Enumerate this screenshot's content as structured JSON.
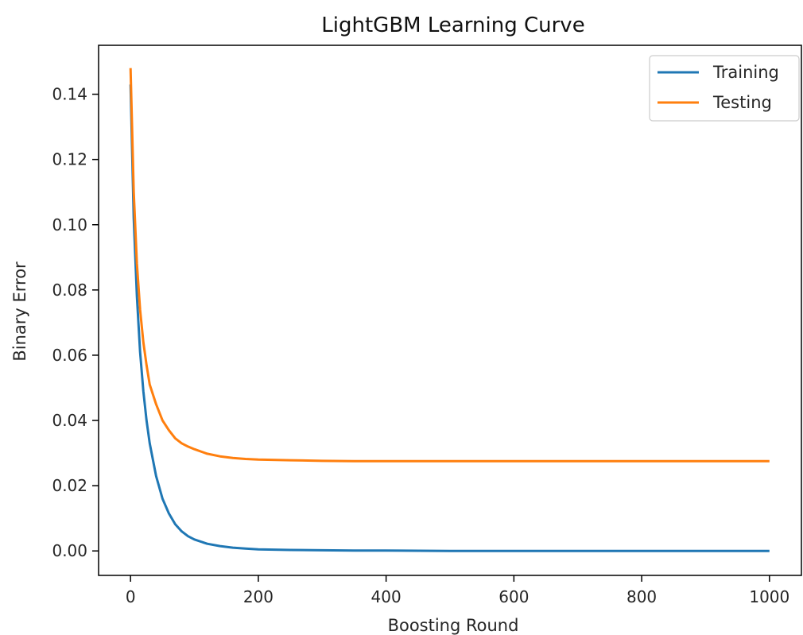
{
  "chart_data": {
    "type": "line",
    "title": "LightGBM Learning Curve",
    "xlabel": "Boosting Round",
    "ylabel": "Binary Error",
    "xlim": [
      -50,
      1050
    ],
    "ylim": [
      -0.0075,
      0.155
    ],
    "xticks": [
      0,
      200,
      400,
      600,
      800,
      1000
    ],
    "yticks": [
      0.0,
      0.02,
      0.04,
      0.06,
      0.08,
      0.1,
      0.12,
      0.14
    ],
    "xtick_labels": [
      "0",
      "200",
      "400",
      "600",
      "800",
      "1000"
    ],
    "ytick_labels": [
      "0.00",
      "0.02",
      "0.04",
      "0.06",
      "0.08",
      "0.10",
      "0.12",
      "0.14"
    ],
    "grid": false,
    "legend_position": "top-right",
    "series": [
      {
        "name": "Training",
        "color": "#1f77b4",
        "x": [
          0,
          5,
          10,
          15,
          20,
          25,
          30,
          40,
          50,
          60,
          70,
          80,
          90,
          100,
          120,
          140,
          160,
          180,
          200,
          250,
          300,
          350,
          400,
          500,
          600,
          700,
          800,
          900,
          1000
        ],
        "y": [
          0.143,
          0.102,
          0.078,
          0.061,
          0.049,
          0.04,
          0.033,
          0.023,
          0.016,
          0.0115,
          0.0082,
          0.006,
          0.0045,
          0.0035,
          0.0022,
          0.0015,
          0.001,
          0.0007,
          0.0005,
          0.0003,
          0.0002,
          0.0001,
          0.0001,
          0.0,
          0.0,
          0.0,
          0.0,
          0.0,
          0.0
        ]
      },
      {
        "name": "Testing",
        "color": "#ff7f0e",
        "x": [
          0,
          5,
          10,
          15,
          20,
          25,
          30,
          40,
          50,
          60,
          70,
          80,
          90,
          100,
          120,
          140,
          160,
          180,
          200,
          250,
          300,
          350,
          400,
          500,
          600,
          700,
          800,
          900,
          1000
        ],
        "y": [
          0.148,
          0.11,
          0.088,
          0.074,
          0.064,
          0.057,
          0.051,
          0.045,
          0.04,
          0.037,
          0.0345,
          0.033,
          0.032,
          0.0312,
          0.0298,
          0.029,
          0.0285,
          0.0282,
          0.028,
          0.0278,
          0.0276,
          0.0275,
          0.0275,
          0.0275,
          0.0275,
          0.0275,
          0.0275,
          0.0275,
          0.0275
        ]
      }
    ]
  }
}
